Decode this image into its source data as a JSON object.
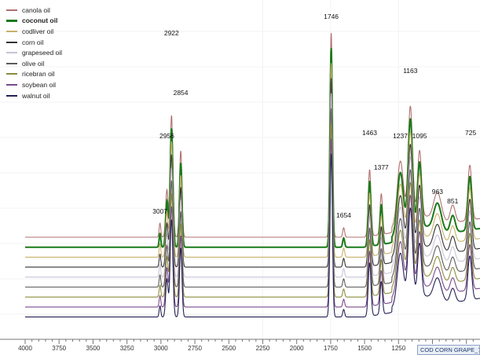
{
  "chart_data": {
    "type": "line",
    "xlim": [
      4000,
      650
    ],
    "x_reversed": true,
    "ticks": [
      4000,
      3750,
      3500,
      3250,
      3000,
      2750,
      2500,
      2250,
      2000,
      1750,
      1500,
      1250
    ],
    "tick_labels": [
      "4000",
      "3750",
      "3500",
      "3250",
      "3000",
      "2750",
      "2500",
      "2250",
      "2000",
      "1750",
      "1500",
      "1250"
    ],
    "legend_position": "top-left",
    "peak_labels": [
      {
        "x": 3007,
        "text": "3007"
      },
      {
        "x": 2956,
        "text": "2956"
      },
      {
        "x": 2922,
        "text": "2922"
      },
      {
        "x": 2854,
        "text": "2854"
      },
      {
        "x": 1746,
        "text": "1746"
      },
      {
        "x": 1654,
        "text": "1654"
      },
      {
        "x": 1463,
        "text": "1463"
      },
      {
        "x": 1377,
        "text": "1377"
      },
      {
        "x": 1237,
        "text": "1237"
      },
      {
        "x": 1163,
        "text": "1163"
      },
      {
        "x": 1095,
        "text": "1095"
      },
      {
        "x": 963,
        "text": "963"
      },
      {
        "x": 851,
        "text": "851"
      },
      {
        "x": 725,
        "text": "725"
      }
    ],
    "series": [
      {
        "name": "canola oil",
        "color": "#b07070",
        "bold": false
      },
      {
        "name": "coconut oil",
        "color": "#1a7a1a",
        "bold": true
      },
      {
        "name": "codliver oil",
        "color": "#c8b06a",
        "bold": false
      },
      {
        "name": "corn oil",
        "color": "#333333",
        "bold": false
      },
      {
        "name": "grapeseed oil",
        "color": "#c9c2d6",
        "bold": false
      },
      {
        "name": "olive oil",
        "color": "#5a5a5a",
        "bold": false
      },
      {
        "name": "ricebran oil",
        "color": "#8c8c3c",
        "bold": false
      },
      {
        "name": "soybean oil",
        "color": "#7a4a8a",
        "bold": false
      },
      {
        "name": "walnut oil",
        "color": "#222255",
        "bold": false
      }
    ]
  },
  "status_tab": {
    "label": "COD CORN GRAPE_7..."
  }
}
